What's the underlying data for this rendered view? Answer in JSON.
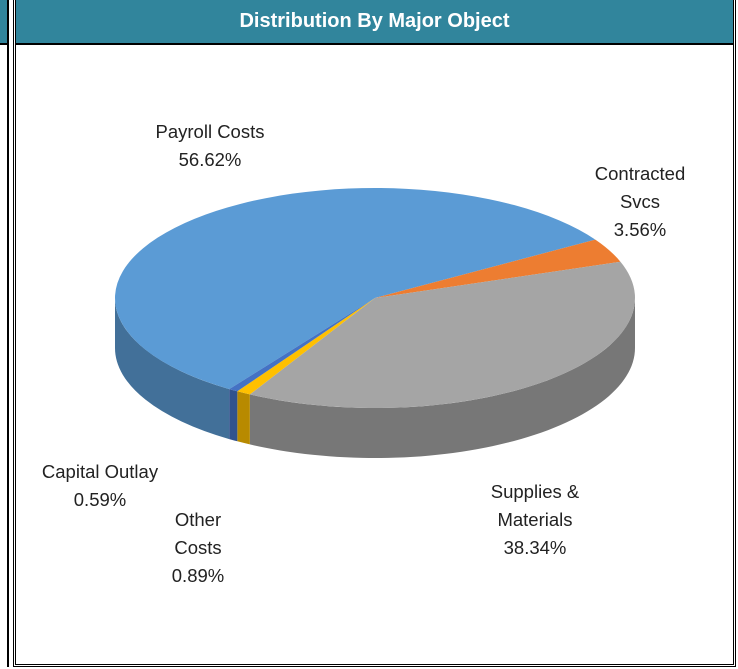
{
  "chart_data": {
    "type": "pie",
    "title": "Distribution By Major Object",
    "categories": [
      "Payroll Costs",
      "Contracted Svcs",
      "Supplies & Materials",
      "Other Costs",
      "Capital Outlay"
    ],
    "values": [
      56.62,
      3.56,
      38.34,
      0.89,
      0.59
    ],
    "value_labels": [
      "56.62%",
      "3.56%",
      "38.34%",
      "0.89%",
      "0.59%"
    ],
    "colors": [
      "#5b9bd5",
      "#ed7d31",
      "#a5a5a5",
      "#ffc000",
      "#4472c4"
    ]
  }
}
